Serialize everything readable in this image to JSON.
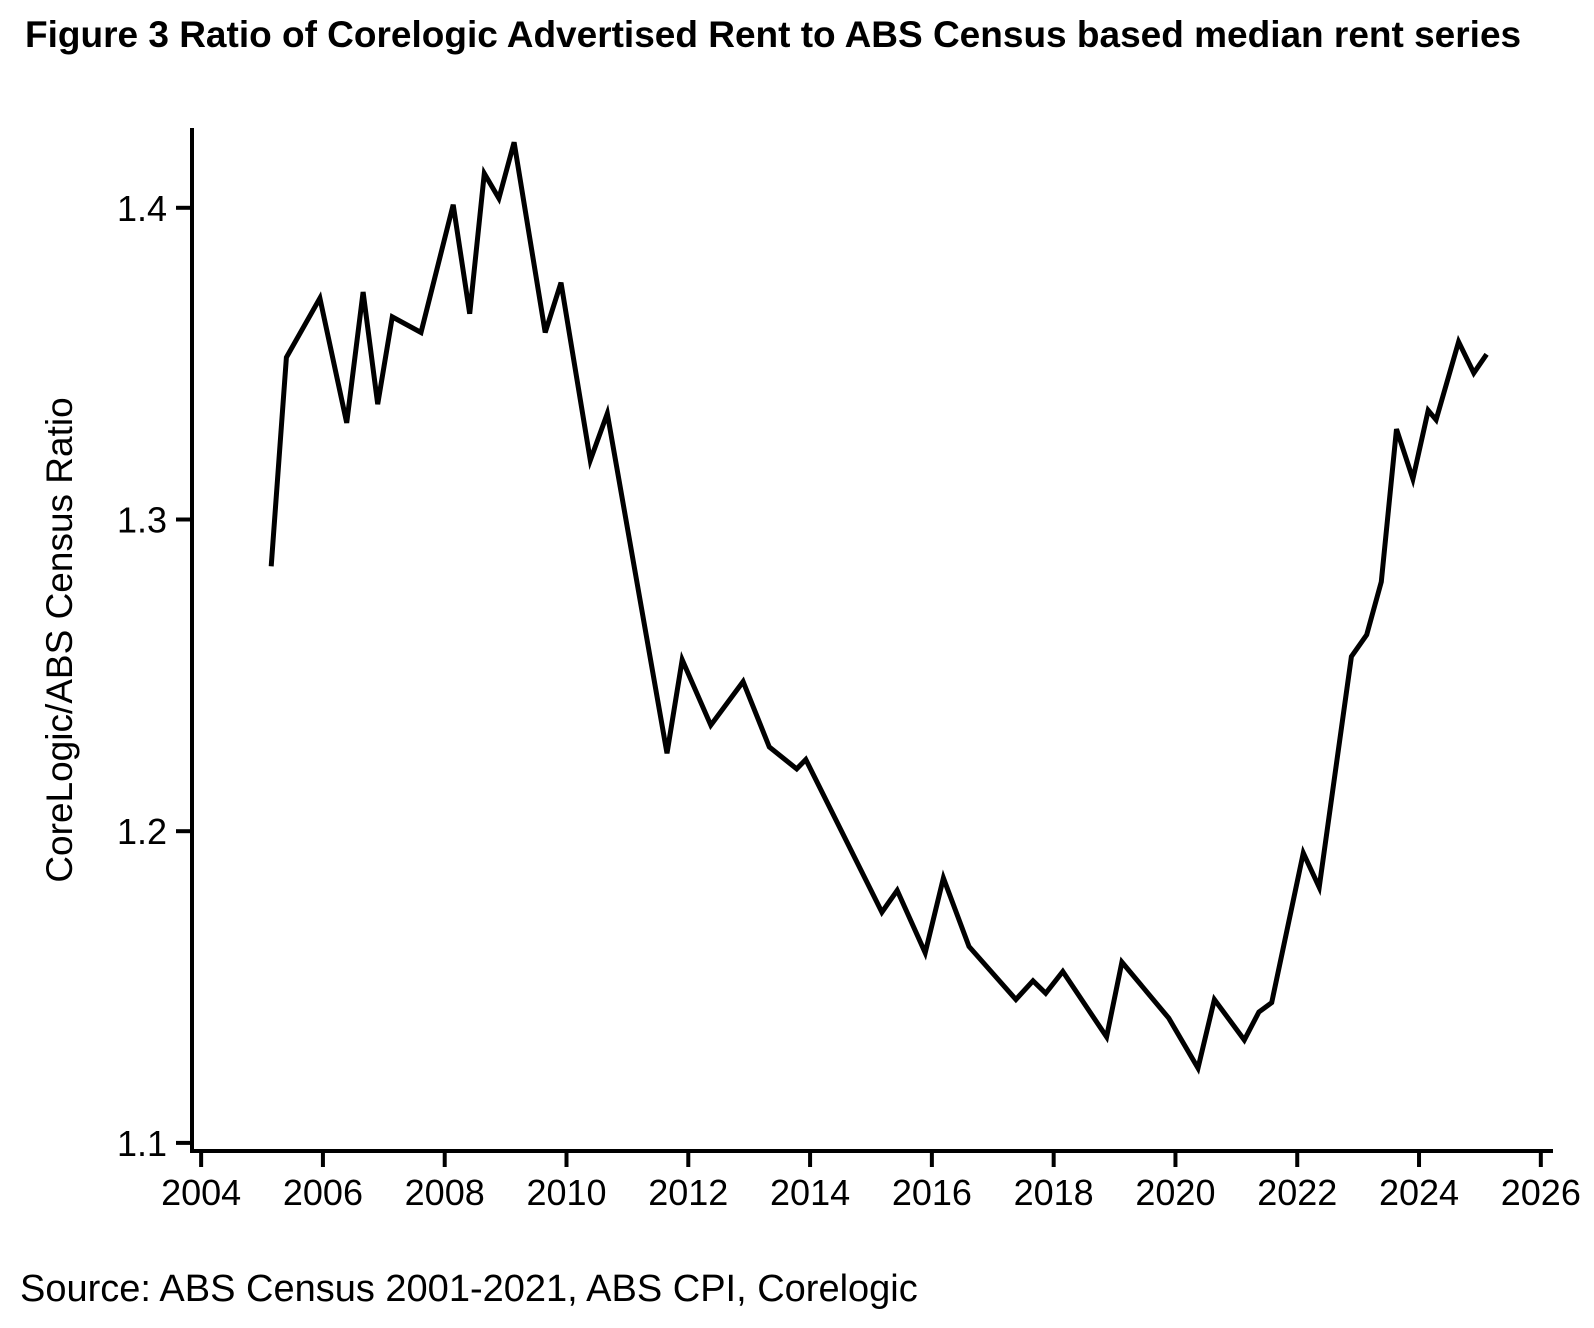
{
  "chart_data": {
    "type": "line",
    "title": "Figure 3 Ratio of Corelogic Advertised Rent to ABS Census based median rent series",
    "xlabel": "",
    "ylabel": "CoreLogic/ABS Census Ratio",
    "source": "Source: ABS Census 2001-2021, ABS CPI, Corelogic",
    "line_color": "#000000",
    "grid": false,
    "legend_position": "none",
    "xlim": [
      2003.85,
      2026.2
    ],
    "ylim": [
      1.0974,
      1.4256
    ],
    "x_ticks": [
      2004,
      2006,
      2008,
      2010,
      2012,
      2014,
      2016,
      2018,
      2020,
      2022,
      2024,
      2026
    ],
    "x_tick_labels": [
      "2004",
      "2006",
      "2008",
      "2010",
      "2012",
      "2014",
      "2016",
      "2018",
      "2020",
      "2022",
      "2024",
      "2026"
    ],
    "y_ticks": [
      1.1,
      1.2,
      1.3,
      1.4
    ],
    "y_tick_labels": [
      "1.1",
      "1.2",
      "1.3",
      "1.4"
    ],
    "series": [
      {
        "name": "CoreLogic/ABS Census Ratio",
        "x": [
          2005.15,
          2005.4,
          2005.95,
          2006.39,
          2006.66,
          2006.9,
          2007.14,
          2007.61,
          2008.14,
          2008.41,
          2008.65,
          2008.89,
          2009.14,
          2009.65,
          2009.91,
          2010.39,
          2010.67,
          2011.65,
          2011.9,
          2012.37,
          2012.9,
          2013.33,
          2013.78,
          2013.93,
          2015.18,
          2015.43,
          2015.89,
          2016.19,
          2016.61,
          2017.38,
          2017.66,
          2017.87,
          2018.15,
          2018.87,
          2019.12,
          2019.89,
          2020.37,
          2020.64,
          2021.13,
          2021.37,
          2021.58,
          2022.1,
          2022.36,
          2022.89,
          2023.14,
          2023.38,
          2023.63,
          2023.9,
          2024.15,
          2024.28,
          2024.65,
          2024.9,
          2025.11
        ],
        "y": [
          1.285,
          1.352,
          1.371,
          1.331,
          1.373,
          1.337,
          1.365,
          1.36,
          1.401,
          1.366,
          1.411,
          1.403,
          1.421,
          1.36,
          1.376,
          1.319,
          1.334,
          1.225,
          1.255,
          1.234,
          1.248,
          1.227,
          1.22,
          1.223,
          1.174,
          1.181,
          1.161,
          1.185,
          1.163,
          1.146,
          1.152,
          1.148,
          1.155,
          1.134,
          1.158,
          1.14,
          1.124,
          1.146,
          1.133,
          1.142,
          1.145,
          1.193,
          1.182,
          1.256,
          1.263,
          1.28,
          1.329,
          1.313,
          1.335,
          1.332,
          1.357,
          1.347,
          1.353
        ]
      }
    ]
  }
}
